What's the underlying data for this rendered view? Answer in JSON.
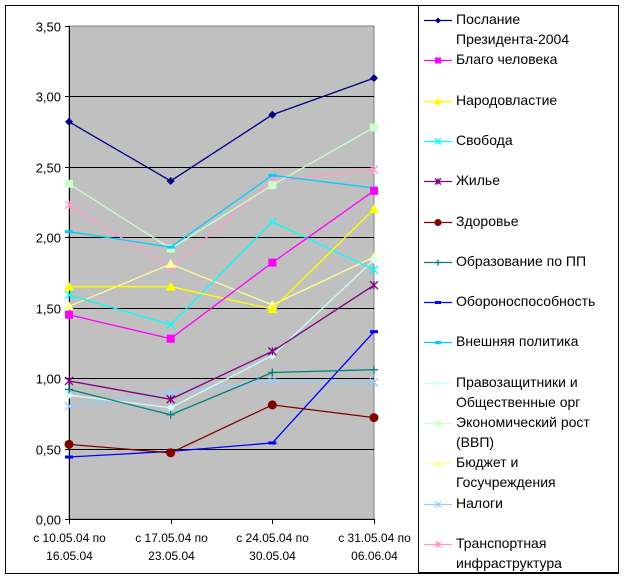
{
  "chart_data": {
    "type": "line",
    "title": "",
    "xlabel": "",
    "ylabel": "",
    "ylim": [
      0,
      3.5
    ],
    "yticks": [
      "0,00",
      "0,50",
      "1,00",
      "1,50",
      "2,00",
      "2,50",
      "3,00",
      "3,50"
    ],
    "ytick_values": [
      0,
      0.5,
      1.0,
      1.5,
      2.0,
      2.5,
      3.0,
      3.5
    ],
    "grid": true,
    "legend_position": "right",
    "plot_background": "#c0c0c0",
    "categories": [
      [
        "с 10.05.04 по",
        "16.05.04"
      ],
      [
        "с 17.05.04 по",
        "23.05.04"
      ],
      [
        "с 24.05.04 по",
        "30.05.04"
      ],
      [
        "с 31.05.04 по",
        "06.06.04"
      ]
    ],
    "series": [
      {
        "name": "Послание Президента-2004",
        "label_lines": "Послание\nПрезидента-2004",
        "color": "#000080",
        "marker": "diamond",
        "values": [
          2.82,
          2.4,
          2.87,
          3.13
        ]
      },
      {
        "name": "Благо человека",
        "label_lines": "Благо человека",
        "color": "#ff00ff",
        "marker": "square",
        "values": [
          1.45,
          1.28,
          1.82,
          2.33
        ]
      },
      {
        "name": "Народовластие",
        "label_lines": "Народовластие",
        "color": "#ffff00",
        "marker": "triangle",
        "values": [
          1.65,
          1.65,
          1.49,
          2.2
        ]
      },
      {
        "name": "Свобода",
        "label_lines": "Свобода",
        "color": "#00ffff",
        "marker": "x",
        "values": [
          1.59,
          1.38,
          2.11,
          1.77
        ]
      },
      {
        "name": "Жилье",
        "label_lines": "Жилье",
        "color": "#800080",
        "marker": "star",
        "values": [
          0.98,
          0.85,
          1.19,
          1.66
        ]
      },
      {
        "name": "Здоровье",
        "label_lines": "Здоровье",
        "color": "#800000",
        "marker": "circle",
        "values": [
          0.53,
          0.47,
          0.81,
          0.72
        ]
      },
      {
        "name": "Образование по ПП",
        "label_lines": "Образование по ПП",
        "color": "#008080",
        "marker": "plus",
        "values": [
          0.92,
          0.74,
          1.04,
          1.06
        ]
      },
      {
        "name": "Обороноспособность",
        "label_lines": "Обороноспособность",
        "color": "#0000ff",
        "marker": "dash",
        "values": [
          0.44,
          0.48,
          0.54,
          1.33
        ]
      },
      {
        "name": "Внешняя политика",
        "label_lines": "Внешняя политика",
        "color": "#00ccff",
        "marker": "dash",
        "values": [
          2.04,
          1.93,
          2.44,
          2.35
        ]
      },
      {
        "name": "Правозащитники и Общественные орг",
        "label_lines": "Правозащитники и\nОбщественные орг",
        "color": "#ccffff",
        "marker": "diamond",
        "values": [
          0.88,
          0.79,
          1.16,
          1.84
        ]
      },
      {
        "name": "Экономический рост (ВВП)",
        "label_lines": "Экономический рост\n(ВВП)",
        "color": "#ccffcc",
        "marker": "square",
        "values": [
          2.38,
          1.92,
          2.37,
          2.78
        ]
      },
      {
        "name": "Бюджет и Госучреждения",
        "label_lines": "Бюджет и\nГосучреждения",
        "color": "#ffff99",
        "marker": "triangle",
        "values": [
          1.51,
          1.81,
          1.52,
          1.86
        ]
      },
      {
        "name": "Налоги",
        "label_lines": "Налоги",
        "color": "#99ccff",
        "marker": "x",
        "values": [
          0.8,
          0.9,
          0.98,
          0.97
        ]
      },
      {
        "name": "Транспортная инфраструктура",
        "label_lines": "Транспортная\nинфраструктура",
        "color": "#ff99cc",
        "marker": "star",
        "values": [
          2.23,
          1.78,
          2.4,
          2.48
        ]
      }
    ]
  }
}
